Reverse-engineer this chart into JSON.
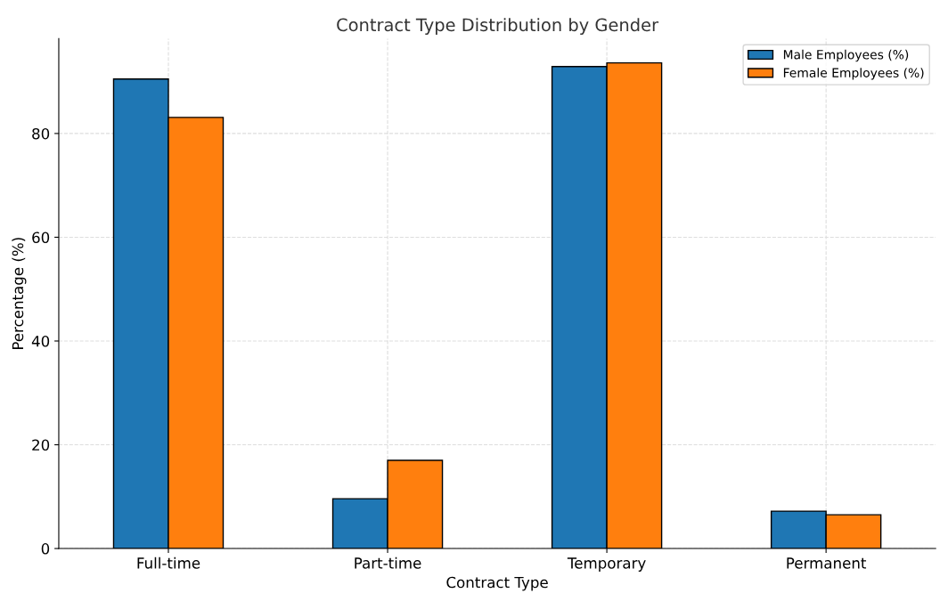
{
  "chart_data": {
    "type": "bar",
    "title": "Contract Type Distribution by Gender",
    "xlabel": "Contract Type",
    "ylabel": "Percentage (%)",
    "categories": [
      "Full-time",
      "Part-time",
      "Temporary",
      "Permanent"
    ],
    "series": [
      {
        "name": "Male Employees (%)",
        "color": "#1f77b4",
        "values": [
          90.5,
          9.6,
          92.9,
          7.2
        ]
      },
      {
        "name": "Female Employees (%)",
        "color": "#ff7f0e",
        "values": [
          83.1,
          17.0,
          93.6,
          6.5
        ]
      }
    ],
    "ylim": [
      0,
      98.3
    ],
    "yticks": [
      0,
      20,
      40,
      60,
      80
    ],
    "grid": true,
    "legend": "top right"
  }
}
